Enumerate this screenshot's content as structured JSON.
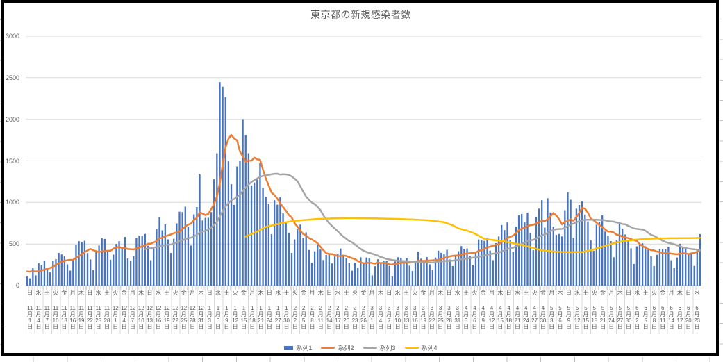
{
  "chart_title": "東京都の新規感染者数",
  "legend": [
    {
      "label": "系列1",
      "color": "#4472C4",
      "swatch": "bar"
    },
    {
      "label": "系列2",
      "color": "#ED7D31",
      "swatch": "line"
    },
    {
      "label": "系列3",
      "color": "#A5A5A5",
      "swatch": "line"
    },
    {
      "label": "系列4",
      "color": "#FFC000",
      "swatch": "line"
    }
  ],
  "colors": {
    "bar": "#4472C4",
    "line2": "#ED7D31",
    "line3": "#A5A5A5",
    "line4": "#FFC000",
    "gridline": "#D9D9D9",
    "axis_line": "#BFBFBF",
    "text": "#595959",
    "frame": "#000000"
  },
  "chart_data": {
    "type": "combo",
    "title": "東京都の新規感染者数",
    "ylim": [
      0,
      3000
    ],
    "y_ticks": [
      0,
      500,
      1000,
      1500,
      2000,
      2500,
      3000
    ],
    "grid": "horizontal",
    "x_start_date_label": "11月1日",
    "x_end_date_label": "6月23日",
    "x_label_every_days": 3,
    "x_labels": {
      "weekdays": "日水土火金月木日水土火金月木日水土火金月木日水土火金月木日水土火金月木日水土火金月木日水土火金月木日水土火金月木日水土火金月木日水土火金月木日水土火金月木日水",
      "months": [
        11,
        11,
        11,
        11,
        11,
        11,
        11,
        11,
        11,
        11,
        12,
        12,
        12,
        12,
        12,
        12,
        12,
        12,
        12,
        12,
        12,
        1,
        1,
        1,
        1,
        1,
        1,
        1,
        1,
        1,
        1,
        2,
        2,
        2,
        2,
        2,
        2,
        2,
        2,
        2,
        3,
        3,
        3,
        3,
        3,
        3,
        3,
        3,
        3,
        3,
        3,
        4,
        4,
        4,
        4,
        4,
        4,
        4,
        4,
        4,
        4,
        5,
        5,
        5,
        5,
        5,
        5,
        5,
        5,
        5,
        5,
        6,
        6,
        6,
        6,
        6,
        6,
        6,
        6
      ],
      "days": [
        1,
        4,
        7,
        10,
        13,
        16,
        19,
        22,
        25,
        28,
        1,
        4,
        7,
        10,
        13,
        16,
        19,
        22,
        25,
        28,
        31,
        3,
        6,
        9,
        12,
        15,
        18,
        21,
        24,
        27,
        30,
        2,
        5,
        8,
        11,
        14,
        17,
        20,
        23,
        26,
        1,
        4,
        7,
        10,
        13,
        16,
        19,
        22,
        25,
        28,
        31,
        3,
        6,
        9,
        12,
        15,
        18,
        21,
        24,
        27,
        30,
        3,
        6,
        9,
        12,
        15,
        18,
        21,
        24,
        27,
        30,
        2,
        5,
        8,
        11,
        14,
        17,
        20,
        23
      ],
      "month_suffix": "月",
      "day_suffix": "日"
    },
    "series": [
      {
        "name": "系列1",
        "type": "bar",
        "color": "#4472C4",
        "values": [
          116,
          87,
          209,
          122,
          269,
          242,
          294,
          189,
          157,
          293,
          317,
          393,
          374,
          352,
          255,
          180,
          298,
          493,
          534,
          522,
          539,
          391,
          314,
          186,
          401,
          481,
          570,
          561,
          418,
          311,
          372,
          500,
          533,
          449,
          584,
          327,
          299,
          352,
          572,
          602,
          595,
          621,
          480,
          305,
          460,
          678,
          822,
          664,
          736,
          556,
          392,
          563,
          748,
          888,
          884,
          949,
          708,
          481,
          856,
          944,
          1337,
          783,
          814,
          816,
          884,
          1278,
          1591,
          2447,
          2392,
          2268,
          1494,
          1219,
          970,
          1433,
          1502,
          2001,
          1809,
          1592,
          1204,
          1240,
          1274,
          1471,
          1175,
          1070,
          986,
          618,
          1026,
          973,
          1064,
          868,
          769,
          633,
          393,
          556,
          676,
          734,
          577,
          639,
          429,
          276,
          412,
          491,
          434,
          307,
          369,
          371,
          266,
          350,
          378,
          445,
          353,
          327,
          272,
          178,
          275,
          213,
          340,
          270,
          337,
          329,
          121,
          232,
          316,
          279,
          301,
          293,
          237,
          116,
          290,
          340,
          335,
          304,
          330,
          239,
          175,
          300,
          409,
          323,
          303,
          342,
          256,
          187,
          337,
          420,
          394,
          376,
          430,
          313,
          234,
          364,
          414,
          475,
          440,
          446,
          355,
          249,
          399,
          555,
          545,
          537,
          570,
          421,
          306,
          510,
          591,
          729,
          667,
          759,
          543,
          405,
          711,
          843,
          861,
          759,
          876,
          635,
          425,
          828,
          925,
          1027,
          698,
          1050,
          879,
          708,
          609,
          621,
          591,
          907,
          1121,
          1032,
          573,
          925,
          969,
          1010,
          854,
          772,
          542,
          419,
          732,
          766,
          843,
          649,
          602,
          535,
          340,
          542,
          743,
          684,
          614,
          539,
          448,
          260,
          471,
          487,
          508,
          472,
          436,
          351,
          235,
          369,
          440,
          439,
          435,
          467,
          304,
          209,
          337,
          501,
          452,
          453,
          388,
          376,
          236,
          435,
          619
        ]
      },
      {
        "name": "系列2",
        "type": "line",
        "color": "#ED7D31",
        "transform": "moving_average",
        "window": 7,
        "seed": [
          102,
          158,
          171,
          221,
          203,
          215
        ]
      },
      {
        "name": "系列3",
        "type": "line",
        "color": "#A5A5A5",
        "transform": "moving_average",
        "window": 28,
        "plot_from_index": 41
      },
      {
        "name": "系列4",
        "type": "line",
        "color": "#FFC000",
        "transform": "anchor_interpolation",
        "anchors": [
          [
            76,
            590
          ],
          [
            80,
            650
          ],
          [
            83,
            705
          ],
          [
            88,
            748
          ],
          [
            92,
            775
          ],
          [
            97,
            790
          ],
          [
            101,
            802
          ],
          [
            106,
            808
          ],
          [
            111,
            812
          ],
          [
            118,
            810
          ],
          [
            124,
            806
          ],
          [
            130,
            800
          ],
          [
            134,
            795
          ],
          [
            138,
            788
          ],
          [
            141,
            780
          ],
          [
            145,
            762
          ],
          [
            148,
            725
          ],
          [
            150,
            688
          ],
          [
            153,
            660
          ],
          [
            155,
            636
          ],
          [
            157,
            600
          ],
          [
            159,
            562
          ],
          [
            162,
            548
          ],
          [
            165,
            537
          ],
          [
            168,
            518
          ],
          [
            172,
            488
          ],
          [
            175,
            462
          ],
          [
            178,
            432
          ],
          [
            181,
            415
          ],
          [
            185,
            406
          ],
          [
            189,
            401
          ],
          [
            193,
            404
          ],
          [
            196,
            425
          ],
          [
            199,
            455
          ],
          [
            202,
            488
          ],
          [
            205,
            520
          ],
          [
            208,
            538
          ],
          [
            211,
            550
          ],
          [
            214,
            558
          ],
          [
            218,
            565
          ],
          [
            222,
            568
          ],
          [
            228,
            570
          ],
          [
            234,
            573
          ]
        ]
      }
    ]
  }
}
